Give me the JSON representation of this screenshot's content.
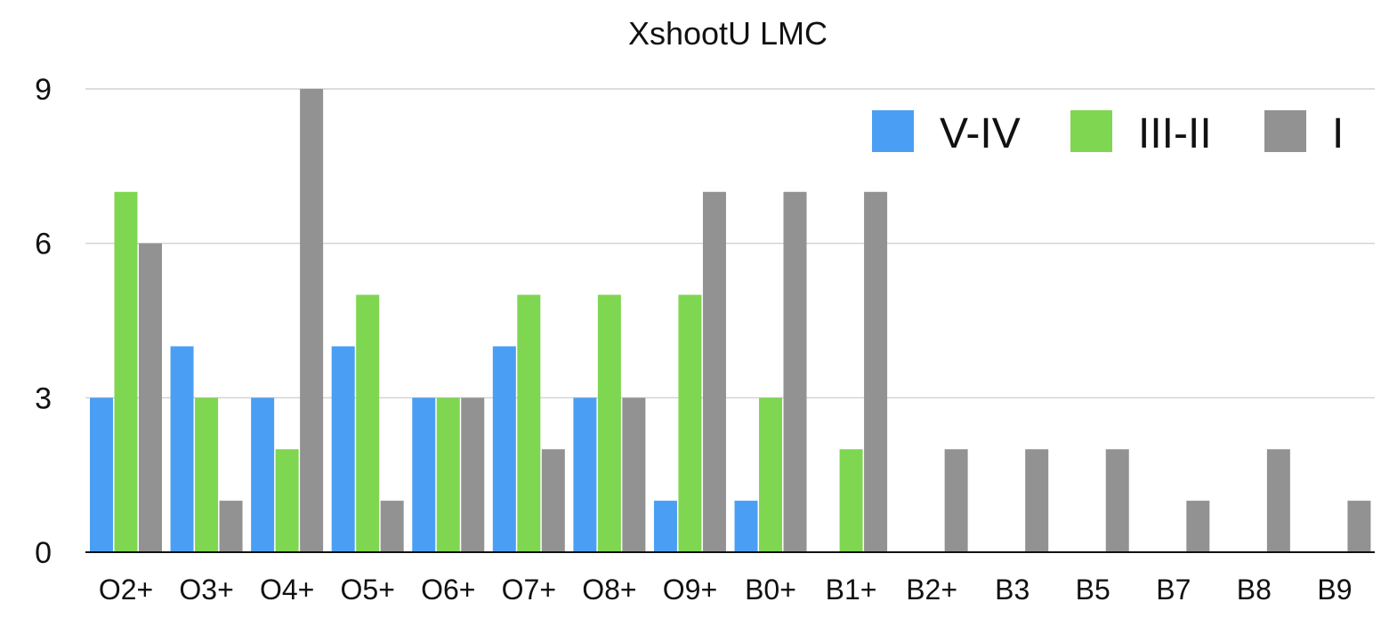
{
  "chart_data": {
    "type": "bar",
    "title": "XshootU LMC",
    "xlabel": "",
    "ylabel": "",
    "ylim": [
      0,
      9
    ],
    "yticks": [
      0,
      3,
      6,
      9
    ],
    "grid": true,
    "legend_position": "top-right",
    "categories": [
      "O2+",
      "O3+",
      "O4+",
      "O5+",
      "O6+",
      "O7+",
      "O8+",
      "O9+",
      "B0+",
      "B1+",
      "B2+",
      "B3",
      "B5",
      "B7",
      "B8",
      "B9"
    ],
    "series": [
      {
        "name": "V-IV",
        "color": "#4a9ff5",
        "values": [
          3,
          4,
          3,
          4,
          3,
          4,
          3,
          1,
          1,
          0,
          0,
          0,
          0,
          0,
          0,
          0
        ]
      },
      {
        "name": "III-II",
        "color": "#7fd650",
        "values": [
          7,
          3,
          2,
          5,
          3,
          5,
          5,
          5,
          3,
          2,
          0,
          0,
          0,
          0,
          0,
          0
        ]
      },
      {
        "name": "I",
        "color": "#929292",
        "values": [
          6,
          1,
          9,
          1,
          3,
          2,
          3,
          7,
          7,
          7,
          2,
          2,
          2,
          1,
          2,
          1
        ]
      }
    ]
  }
}
